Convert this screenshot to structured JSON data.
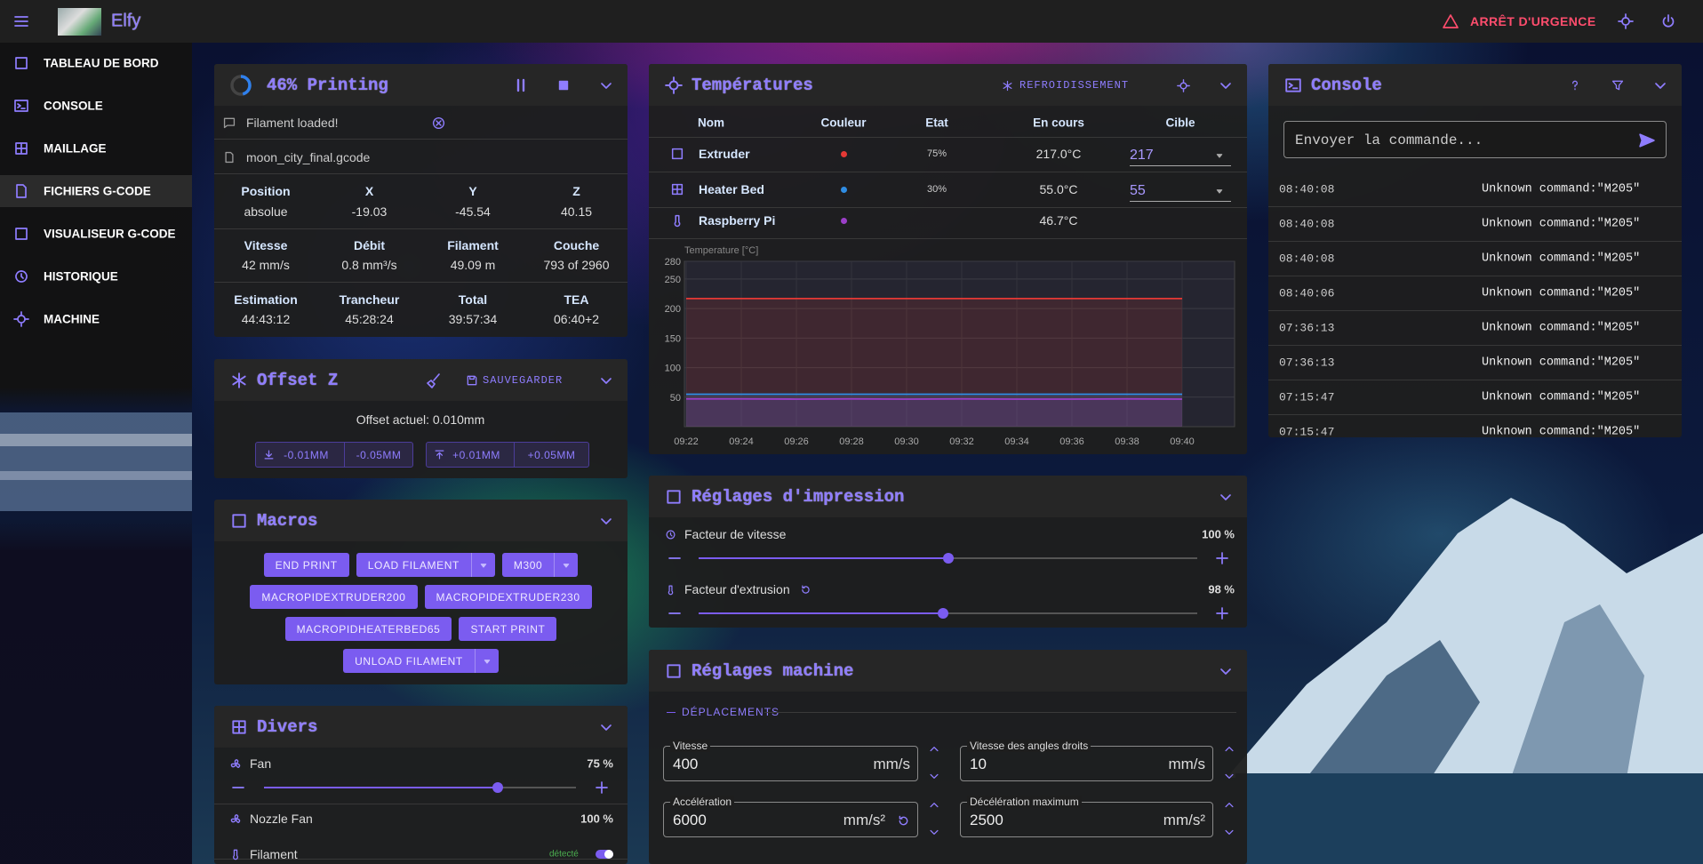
{
  "app": {
    "name": "Elfy",
    "emergency_stop": "ARRÊT D'URGENCE"
  },
  "nav": {
    "items": [
      "TABLEAU DE BORD",
      "CONSOLE",
      "MAILLAGE",
      "FICHIERS G-CODE",
      "VISUALISEUR G-CODE",
      "HISTORIQUE",
      "MACHINE"
    ],
    "active": 3
  },
  "status": {
    "title": "46% Printing",
    "progress": 46,
    "message": "Filament loaded!",
    "file": "moon_city_final.gcode",
    "rows": [
      [
        {
          "label": "Position",
          "value": "absolue"
        },
        {
          "label": "X",
          "value": "-19.03"
        },
        {
          "label": "Y",
          "value": "-45.54"
        },
        {
          "label": "Z",
          "value": "40.15"
        }
      ],
      [
        {
          "label": "Vitesse",
          "value": "42 mm/s"
        },
        {
          "label": "Débit",
          "value": "0.8 mm³/s"
        },
        {
          "label": "Filament",
          "value": "49.09 m"
        },
        {
          "label": "Couche",
          "value": "793 of 2960"
        }
      ],
      [
        {
          "label": "Estimation",
          "value": "44:43:12"
        },
        {
          "label": "Trancheur",
          "value": "45:28:24"
        },
        {
          "label": "Total",
          "value": "39:57:34"
        },
        {
          "label": "TEA",
          "value": "06:40+2"
        }
      ]
    ]
  },
  "offset_z": {
    "title": "Offset Z",
    "save": "SAUVEGARDER",
    "current": "Offset actuel: 0.010mm",
    "buttons": [
      [
        "-0.01MM",
        "-0.05MM"
      ],
      [
        "+0.01MM",
        "+0.05MM"
      ]
    ]
  },
  "macros": {
    "title": "Macros",
    "buttons": [
      {
        "label": "END PRINT"
      },
      {
        "label": "LOAD FILAMENT",
        "menu": true
      },
      {
        "label": "M300",
        "menu": true
      },
      {
        "label": "MACROPIDEXTRUDER200"
      },
      {
        "label": "MACROPIDEXTRUDER230"
      },
      {
        "label": "MACROPIDHEATERBED65"
      },
      {
        "label": "START PRINT"
      },
      {
        "label": "UNLOAD FILAMENT",
        "menu": true
      }
    ]
  },
  "misc": {
    "title": "Divers",
    "fans": [
      {
        "label": "Fan",
        "value": 75,
        "value_label": "75 %",
        "range": [
          0,
          100
        ]
      },
      {
        "label": "Nozzle Fan",
        "value": 100,
        "value_label": "100 %"
      }
    ],
    "filament": {
      "label": "Filament",
      "status": "détecté"
    }
  },
  "temperatures": {
    "title": "Températures",
    "cooldown": "REFROIDISSEMENT",
    "headers": [
      "Nom",
      "Couleur",
      "Etat",
      "En cours",
      "Cible"
    ],
    "rows": [
      {
        "state": "75%",
        "current": "217.0°C",
        "target": "217"
      },
      {
        "state": "30%",
        "current": "55.0°C",
        "target": "55"
      },
      {
        "current": "46.7°C"
      }
    ]
  },
  "chart_data": {
    "type": "line",
    "y_label": "Temperature [°C]",
    "categories": [
      "09:22",
      "09:24",
      "09:26",
      "09:28",
      "09:30",
      "09:32",
      "09:34",
      "09:36",
      "09:38",
      "09:40"
    ],
    "ylim": [
      0,
      280
    ],
    "yticks": [
      50,
      100,
      150,
      200,
      250,
      280
    ],
    "grid": true,
    "series": [
      {
        "name": "Extruder",
        "color": "#e53935",
        "values": [
          217,
          217,
          217,
          217,
          217,
          217,
          217,
          217,
          217,
          217
        ]
      },
      {
        "name": "Heater Bed",
        "color": "#2f8de4",
        "values": [
          55,
          55,
          55,
          55,
          55,
          55,
          55,
          55,
          55,
          55
        ]
      },
      {
        "name": "Raspberry Pi",
        "color": "#9b3fc8",
        "values": [
          47,
          47,
          46.7,
          47,
          46.7,
          47,
          46.7,
          46.7,
          47,
          46.7
        ]
      }
    ]
  },
  "print_settings": {
    "title": "Réglages d'impression",
    "range": [
      0,
      200
    ],
    "factors": [
      {
        "label": "Facteur de vitesse",
        "value": 100,
        "value_label": "100 %"
      },
      {
        "label": "Facteur d'extrusion",
        "value": 98,
        "value_label": "98 %"
      }
    ]
  },
  "machine_settings": {
    "title": "Réglages machine",
    "section": "DÉPLACEMENTS",
    "fields": [
      {
        "label": "Vitesse",
        "value": "400",
        "unit": "mm/s"
      },
      {
        "label": "Vitesse des angles droits",
        "value": "10",
        "unit": "mm/s"
      },
      {
        "label": "Accélération",
        "value": "6000",
        "unit": "mm/s²"
      },
      {
        "label": "Décélération maximum",
        "value": "2500",
        "unit": "mm/s²"
      }
    ]
  },
  "console": {
    "title": "Console",
    "placeholder": "Envoyer la commande...",
    "entries": [
      {
        "time": "08:40:08",
        "message": "Unknown command:\"M205\""
      },
      {
        "time": "08:40:08",
        "message": "Unknown command:\"M205\""
      },
      {
        "time": "08:40:08",
        "message": "Unknown command:\"M205\""
      },
      {
        "time": "08:40:06",
        "message": "Unknown command:\"M205\""
      },
      {
        "time": "07:36:13",
        "message": "Unknown command:\"M205\""
      },
      {
        "time": "07:36:13",
        "message": "Unknown command:\"M205\""
      },
      {
        "time": "07:15:47",
        "message": "Unknown command:\"M205\""
      },
      {
        "time": "07:15:47",
        "message": "Unknown command:\"M205\""
      }
    ]
  }
}
